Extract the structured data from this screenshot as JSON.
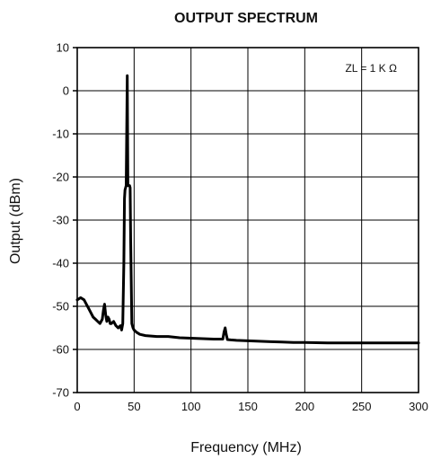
{
  "chart_data": {
    "type": "line",
    "title": "OUTPUT SPECTRUM",
    "xlabel": "Frequency (MHz)",
    "ylabel": "Output (dBm)",
    "xlim": [
      0,
      300
    ],
    "ylim": [
      -70,
      10
    ],
    "x_ticks": [
      "0",
      "50",
      "100",
      "150",
      "200",
      "250",
      "300"
    ],
    "y_ticks": [
      "10",
      "0",
      "-10",
      "-20",
      "-30",
      "-40",
      "-50",
      "-60",
      "-70"
    ],
    "grid": true,
    "annotation": "ZL = 1 K Ω",
    "series": [
      {
        "x": [
          0,
          3,
          6,
          8,
          10,
          12,
          14,
          16,
          18,
          20,
          22,
          23,
          24,
          25,
          26,
          27,
          28,
          29,
          30,
          32,
          34,
          36,
          38,
          39,
          40,
          41,
          41.5,
          42,
          43,
          44,
          44.5,
          45,
          46,
          46.5,
          47,
          48,
          49,
          50,
          52,
          55,
          60,
          70,
          80,
          90,
          100,
          110,
          120,
          125,
          128,
          129,
          130,
          131,
          132,
          135,
          140,
          150,
          160,
          170,
          180,
          190,
          200,
          220,
          240,
          260,
          280,
          300
        ],
        "y": [
          -48.5,
          -48,
          -48.5,
          -49.5,
          -50.5,
          -51.5,
          -52.5,
          -53,
          -53.5,
          -54,
          -53,
          -51,
          -49.5,
          -52,
          -53.5,
          -52.5,
          -53,
          -54,
          -54,
          -53.5,
          -54.5,
          -55,
          -54.5,
          -55.5,
          -54,
          -40,
          -25,
          -23,
          -22,
          3.5,
          -22,
          -22,
          -22,
          -22.5,
          -35,
          -54,
          -55,
          -55.5,
          -56,
          -56.5,
          -56.8,
          -57,
          -57,
          -57.3,
          -57.4,
          -57.5,
          -57.6,
          -57.6,
          -57.6,
          -56,
          -55,
          -56.5,
          -57.7,
          -57.8,
          -57.9,
          -58,
          -58.1,
          -58.2,
          -58.3,
          -58.4,
          -58.4,
          -58.5,
          -58.5,
          -58.5,
          -58.5,
          -58.5
        ]
      }
    ]
  }
}
